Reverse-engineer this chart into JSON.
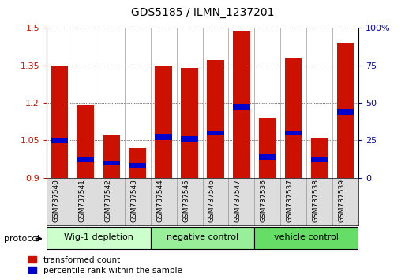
{
  "title": "GDS5185 / ILMN_1237201",
  "samples": [
    "GSM737540",
    "GSM737541",
    "GSM737542",
    "GSM737543",
    "GSM737544",
    "GSM737545",
    "GSM737546",
    "GSM737547",
    "GSM737536",
    "GSM737537",
    "GSM737538",
    "GSM737539"
  ],
  "red_values": [
    1.35,
    1.19,
    1.07,
    1.02,
    1.35,
    1.34,
    1.37,
    1.49,
    1.14,
    1.38,
    1.06,
    1.44
  ],
  "blue_percentile": [
    25,
    12,
    10,
    8,
    27,
    26,
    30,
    47,
    14,
    30,
    12,
    44
  ],
  "ylim_left": [
    0.9,
    1.5
  ],
  "ylim_right": [
    0,
    100
  ],
  "yticks_left": [
    0.9,
    1.05,
    1.2,
    1.35,
    1.5
  ],
  "yticks_right": [
    0,
    25,
    50,
    75,
    100
  ],
  "groups": [
    {
      "label": "Wig-1 depletion",
      "start": 0,
      "end": 4,
      "color": "#ccffcc"
    },
    {
      "label": "negative control",
      "start": 4,
      "end": 8,
      "color": "#99ee99"
    },
    {
      "label": "vehicle control",
      "start": 8,
      "end": 12,
      "color": "#66dd66"
    }
  ],
  "bar_color_red": "#cc1100",
  "bar_color_blue": "#0000cc",
  "bar_width": 0.65,
  "ylabel_left_color": "#cc1100",
  "ylabel_right_color": "#0000cc",
  "protocol_label": "protocol"
}
